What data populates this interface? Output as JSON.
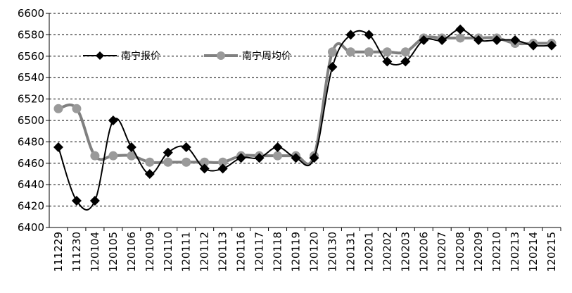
{
  "chart_data": {
    "type": "line",
    "title": "",
    "xlabel": "",
    "ylabel": "",
    "ylim": [
      6400,
      6600
    ],
    "ytick_step": 20,
    "grid": "horizontal-dashed",
    "legend_placement": "top-left",
    "categories": [
      "111229",
      "111230",
      "120104",
      "120105",
      "120106",
      "120109",
      "120110",
      "120111",
      "120112",
      "120113",
      "120116",
      "120117",
      "120118",
      "120119",
      "120120",
      "120130",
      "120131",
      "120201",
      "120202",
      "120203",
      "120206",
      "120207",
      "120208",
      "120209",
      "120210",
      "120213",
      "120214",
      "120215"
    ],
    "series": [
      {
        "name": "南宁报价",
        "color": "#000000",
        "marker": "diamond",
        "values": [
          6475,
          6425,
          6425,
          6500,
          6475,
          6450,
          6470,
          6475,
          6455,
          6455,
          6465,
          6465,
          6475,
          6465,
          6465,
          6550,
          6580,
          6580,
          6555,
          6555,
          6575,
          6575,
          6585,
          6575,
          6575,
          6575,
          6570,
          6570
        ]
      },
      {
        "name": "南宁周均价",
        "color": "#808080",
        "marker": "circle",
        "values": [
          6511,
          6511,
          6467,
          6467,
          6467,
          6461,
          6461,
          6461,
          6461,
          6461,
          6467,
          6467,
          6467,
          6467,
          6467,
          6564,
          6564,
          6564,
          6564,
          6564,
          6577,
          6577,
          6577,
          6577,
          6577,
          6572,
          6572,
          6572
        ]
      }
    ]
  }
}
